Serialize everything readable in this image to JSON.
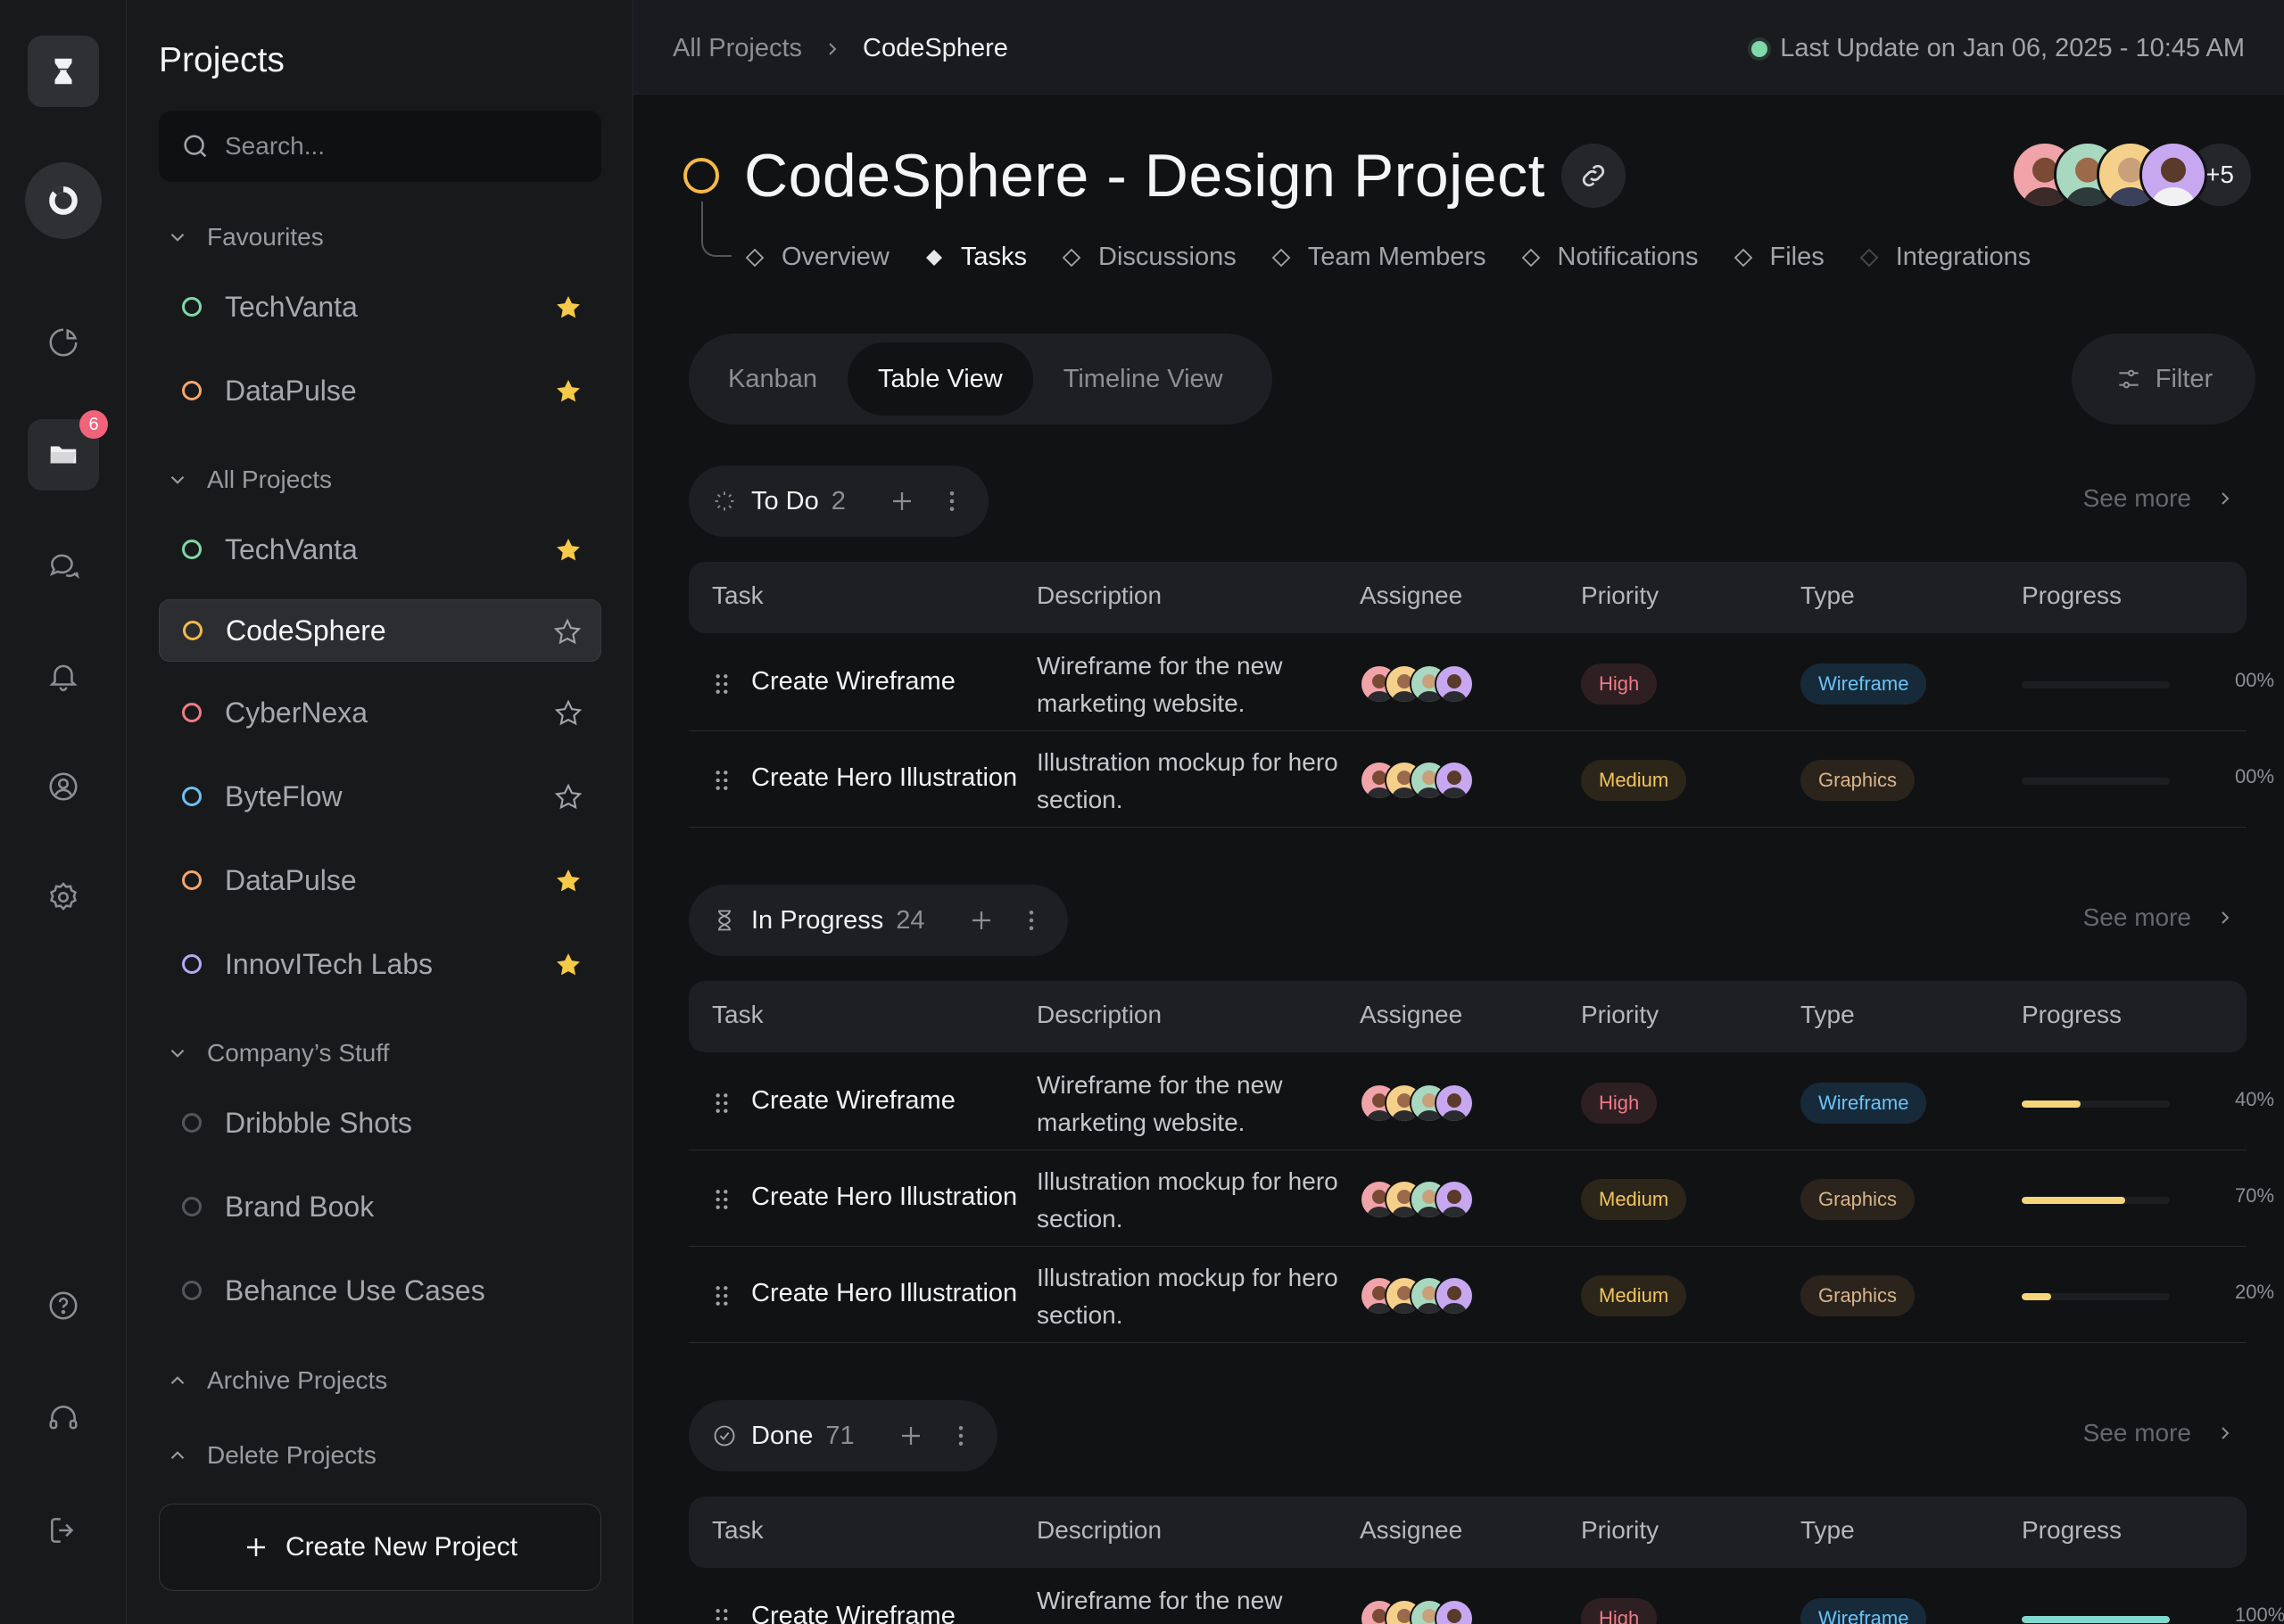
{
  "rail": {
    "badge_count": "6",
    "icons": [
      "hourglass-logo-icon",
      "dashboard-ring-icon",
      "pie-chart-icon",
      "folder-icon",
      "chat-icon",
      "bell-icon",
      "user-circle-icon",
      "gear-icon",
      "help-icon",
      "headset-icon",
      "logout-icon"
    ]
  },
  "sidebar": {
    "title": "Projects",
    "search_placeholder": "Search...",
    "favourites": {
      "label": "Favourites",
      "items": [
        {
          "label": "TechVanta",
          "color": "#7fd9a8",
          "starred": true
        },
        {
          "label": "DataPulse",
          "color": "#f5a66a",
          "starred": true
        }
      ]
    },
    "all_projects": {
      "label": "All Projects",
      "items": [
        {
          "label": "TechVanta",
          "color": "#7fd9a8",
          "starred": true
        },
        {
          "label": "CodeSphere",
          "color": "#f5b94a",
          "starred": false,
          "active": true
        },
        {
          "label": "CyberNexa",
          "color": "#f07a86",
          "starred": false
        },
        {
          "label": "ByteFlow",
          "color": "#6cc2f5",
          "starred": false
        },
        {
          "label": "DataPulse",
          "color": "#f5a66a",
          "starred": true
        },
        {
          "label": "InnovITech Labs",
          "color": "#b5a8f5",
          "starred": true
        }
      ]
    },
    "company_stuff": {
      "label": "Company’s Stuff",
      "items": [
        {
          "label": "Dribbble Shots",
          "color": "#55565b"
        },
        {
          "label": "Brand Book",
          "color": "#55565b"
        },
        {
          "label": "Behance Use Cases",
          "color": "#55565b"
        }
      ]
    },
    "archive_label": "Archive Projects",
    "delete_label": "Delete Projects",
    "create_label": "Create New Project"
  },
  "topbar": {
    "breadcrumb_root": "All Projects",
    "breadcrumb_current": "CodeSphere",
    "last_update": "Last Update on Jan 06, 2025 - 10:45 AM"
  },
  "project": {
    "title": "CodeSphere - Design Project",
    "members_more": "+5",
    "tabs": [
      "Overview",
      "Tasks",
      "Discussions",
      "Team Members",
      "Notifications",
      "Files",
      "Integrations"
    ],
    "active_tab": "Tasks"
  },
  "views": {
    "kanban": "Kanban",
    "table": "Table View",
    "timeline": "Timeline View",
    "filter": "Filter"
  },
  "columns": [
    "Task",
    "Description",
    "Assignee",
    "Priority",
    "Type",
    "Progress"
  ],
  "groups": [
    {
      "name": "To Do",
      "count": "2",
      "see_more": "See more",
      "rows": [
        {
          "task": "Create Wireframe",
          "description": "Wireframe for the new marketing website.",
          "priority": "High",
          "type": "Wireframe",
          "progress": 0,
          "progress_label": "00%"
        },
        {
          "task": "Create Hero Illustration",
          "description": "Illustration mockup for hero section.",
          "priority": "Medium",
          "type": "Graphics",
          "progress": 0,
          "progress_label": "00%"
        }
      ]
    },
    {
      "name": "In Progress",
      "count": "24",
      "see_more": "See more",
      "rows": [
        {
          "task": "Create Wireframe",
          "description": "Wireframe for the new marketing website.",
          "priority": "High",
          "type": "Wireframe",
          "progress": 40,
          "progress_label": "40%"
        },
        {
          "task": "Create Hero Illustration",
          "description": "Illustration mockup for hero section.",
          "priority": "Medium",
          "type": "Graphics",
          "progress": 70,
          "progress_label": "70%"
        },
        {
          "task": "Create Hero Illustration",
          "description": "Illustration mockup for hero section.",
          "priority": "Medium",
          "type": "Graphics",
          "progress": 20,
          "progress_label": "20%"
        }
      ]
    },
    {
      "name": "Done",
      "count": "71",
      "see_more": "See more",
      "rows": [
        {
          "task": "Create Wireframe",
          "description": "Wireframe for the new",
          "priority": "High",
          "type": "Wireframe",
          "progress": 100,
          "progress_label": "100%"
        }
      ]
    }
  ]
}
